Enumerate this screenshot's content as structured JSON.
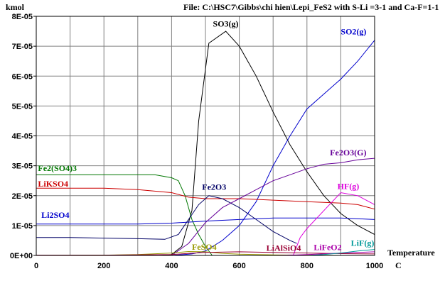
{
  "chart_data": {
    "type": "line",
    "title": "File: C:\\HSC7\\Gibbs\\chi hien\\Lepi_FeS2 with S-Li =3-1 and Ca-F=1-1",
    "ylabel": "kmol",
    "xlabel": "Temperature",
    "xunit": "C",
    "xlim": [
      0,
      1000
    ],
    "ylim": [
      0,
      8e-05
    ],
    "xticks": [
      "0",
      "200",
      "400",
      "600",
      "800",
      "1000"
    ],
    "yticks": [
      "0E+00",
      "1E-05",
      "2E-05",
      "3E-05",
      "4E-05",
      "5E-05",
      "6E-05",
      "7E-05",
      "8E-05"
    ],
    "grid": true,
    "series": [
      {
        "name": "SO3(g)",
        "color": "#000000",
        "x": [
          0,
          100,
          200,
          300,
          360,
          400,
          430,
          460,
          480,
          510,
          560,
          600,
          650,
          700,
          750,
          800,
          850,
          900,
          950,
          1000
        ],
        "y": [
          0,
          0,
          0,
          0,
          0,
          3e-07,
          3e-06,
          1.5e-05,
          4.5e-05,
          7.1e-05,
          7.5e-05,
          7e-05,
          6e-05,
          4.8e-05,
          3.7e-05,
          2.8e-05,
          2e-05,
          1.4e-05,
          1e-05,
          7e-06
        ]
      },
      {
        "name": "SO2(g)",
        "color": "#0000cc",
        "x": [
          0,
          400,
          460,
          500,
          550,
          600,
          650,
          700,
          750,
          800,
          850,
          900,
          950,
          1000
        ],
        "y": [
          0,
          0,
          5e-07,
          1.5e-06,
          5e-06,
          1e-05,
          1.8e-05,
          3e-05,
          4e-05,
          4.9e-05,
          5.4e-05,
          5.9e-05,
          6.5e-05,
          7.2e-05
        ]
      },
      {
        "name": "Fe2(SO4)3",
        "color": "#007700",
        "x": [
          0,
          100,
          200,
          300,
          350,
          400,
          420,
          440,
          460,
          480,
          500,
          520
        ],
        "y": [
          2.7e-05,
          2.7e-05,
          2.7e-05,
          2.7e-05,
          2.7e-05,
          2.6e-05,
          2.5e-05,
          2e-05,
          1.2e-05,
          7e-06,
          3e-06,
          0
        ]
      },
      {
        "name": "LiKSO4",
        "color": "#cc0000",
        "x": [
          0,
          100,
          200,
          300,
          400,
          450,
          500,
          600,
          700,
          800,
          900,
          950,
          1000
        ],
        "y": [
          2.25e-05,
          2.25e-05,
          2.25e-05,
          2.2e-05,
          2.1e-05,
          1.95e-05,
          1.9e-05,
          1.9e-05,
          1.85e-05,
          1.8e-05,
          1.75e-05,
          1.7e-05,
          1.55e-05
        ]
      },
      {
        "name": "Li2SO4",
        "color": "#0000cc",
        "x": [
          0,
          100,
          200,
          300,
          400,
          500,
          600,
          700,
          800,
          900,
          1000
        ],
        "y": [
          1.05e-05,
          1.05e-05,
          1.05e-05,
          1.05e-05,
          1.08e-05,
          1.15e-05,
          1.2e-05,
          1.25e-05,
          1.25e-05,
          1.25e-05,
          1.2e-05
        ]
      },
      {
        "name": "Fe2O3",
        "color": "#000066",
        "x": [
          0,
          100,
          200,
          300,
          380,
          420,
          450,
          480,
          510,
          550,
          600,
          650,
          700,
          750,
          770
        ],
        "y": [
          6e-06,
          6e-06,
          5.8e-06,
          5.6e-06,
          5.4e-06,
          7e-06,
          1.2e-05,
          1.7e-05,
          2e-05,
          1.9e-05,
          1.6e-05,
          1.2e-05,
          8e-06,
          5e-06,
          4e-06
        ]
      },
      {
        "name": "Fe2O3(G)",
        "color": "#660099",
        "x": [
          0,
          400,
          450,
          500,
          550,
          600,
          650,
          700,
          750,
          800,
          850,
          900,
          950,
          1000
        ],
        "y": [
          0,
          0,
          4e-06,
          1.1e-05,
          1.6e-05,
          1.9e-05,
          2.2e-05,
          2.5e-05,
          2.7e-05,
          2.9e-05,
          3.05e-05,
          3.1e-05,
          3.2e-05,
          3.25e-05
        ]
      },
      {
        "name": "HF(g)",
        "color": "#dd00dd",
        "x": [
          0,
          700,
          760,
          780,
          800,
          850,
          900,
          950,
          1000
        ],
        "y": [
          0,
          0,
          2e-07,
          6e-06,
          9e-06,
          1.5e-05,
          2.1e-05,
          2e-05,
          1.7e-05
        ]
      },
      {
        "name": "FeSO4",
        "color": "#999900",
        "x": [
          0,
          200,
          300,
          400,
          450,
          500,
          550,
          600,
          700,
          800,
          900,
          1000
        ],
        "y": [
          0,
          1e-07,
          3e-07,
          8e-07,
          1.3e-06,
          1.2e-06,
          7e-07,
          4e-07,
          2e-07,
          1e-07,
          0,
          0
        ]
      },
      {
        "name": "LiAlSiO4",
        "color": "#990033",
        "x": [
          0,
          200,
          400,
          500,
          600,
          700,
          800,
          900,
          1000
        ],
        "y": [
          1e-07,
          1e-07,
          3e-07,
          1e-06,
          1.2e-06,
          1e-06,
          8e-07,
          6e-07,
          5e-07
        ]
      },
      {
        "name": "LiFeO2",
        "color": "#aa00aa",
        "x": [
          0,
          700,
          750,
          800,
          850,
          900,
          950,
          1000
        ],
        "y": [
          0,
          0,
          1e-07,
          3e-07,
          5e-07,
          8e-07,
          1e-06,
          1.2e-06
        ]
      },
      {
        "name": "LiF(g)",
        "color": "#009999",
        "x": [
          0,
          800,
          850,
          900,
          950,
          1000
        ],
        "y": [
          0,
          0,
          3e-07,
          8e-07,
          1.5e-06,
          2e-06
        ]
      }
    ],
    "labels": [
      {
        "text": "SO3(g)",
        "color": "#000000",
        "x": 560,
        "y": 7.65e-05,
        "anchor": "middle"
      },
      {
        "text": "SO2(g)",
        "color": "#0000cc",
        "x": 900,
        "y": 7.4e-05,
        "anchor": "start"
      },
      {
        "text": "Fe2(SO4)3",
        "color": "#007700",
        "x": 5,
        "y": 2.82e-05,
        "anchor": "start"
      },
      {
        "text": "LiKSO4",
        "color": "#cc0000",
        "x": 5,
        "y": 2.3e-05,
        "anchor": "start"
      },
      {
        "text": "Li2SO4",
        "color": "#0000cc",
        "x": 15,
        "y": 1.26e-05,
        "anchor": "start"
      },
      {
        "text": "Fe2O3",
        "color": "#000066",
        "x": 490,
        "y": 2.2e-05,
        "anchor": "start"
      },
      {
        "text": "Fe2O3(G)",
        "color": "#660099",
        "x": 868,
        "y": 3.35e-05,
        "anchor": "start"
      },
      {
        "text": "HF(g)",
        "color": "#dd00dd",
        "x": 890,
        "y": 2.22e-05,
        "anchor": "start"
      },
      {
        "text": "FeSO4",
        "color": "#999900",
        "x": 460,
        "y": 1.9e-06,
        "anchor": "start"
      },
      {
        "text": "LiAlSiO4",
        "color": "#990033",
        "x": 680,
        "y": 1.6e-06,
        "anchor": "start"
      },
      {
        "text": "LiFeO2",
        "color": "#aa00aa",
        "x": 820,
        "y": 1.8e-06,
        "anchor": "start"
      },
      {
        "text": "LiF(g)",
        "color": "#009999",
        "x": 930,
        "y": 3.2e-06,
        "anchor": "start"
      }
    ]
  }
}
